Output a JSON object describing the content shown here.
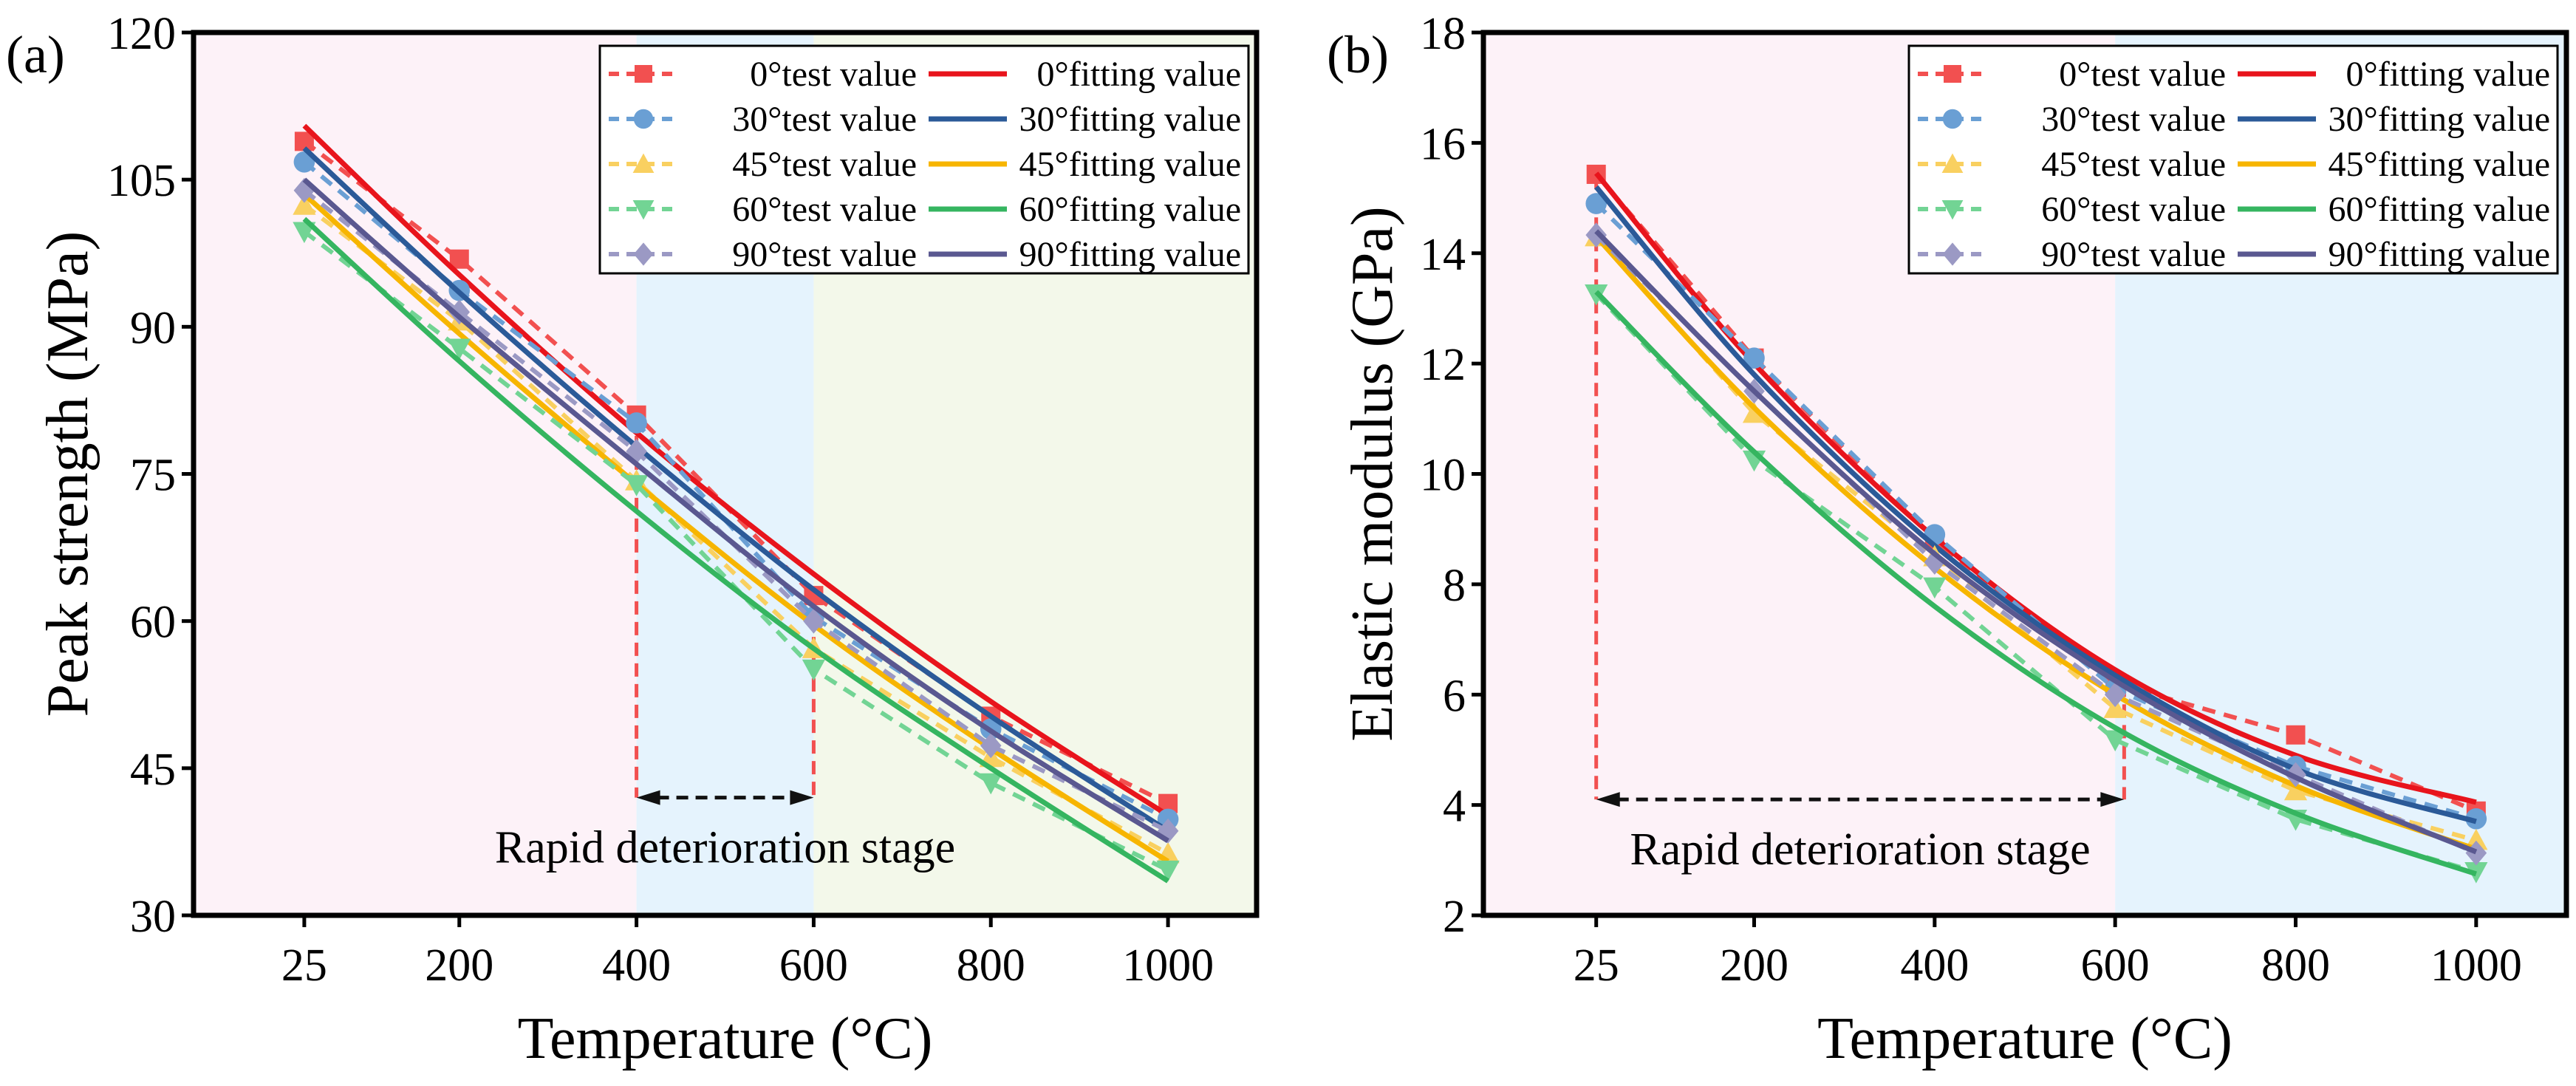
{
  "chart_data": [
    {
      "type": "line",
      "panel_label": "(a)",
      "xlabel": "Temperature (°C)",
      "ylabel": "Peak strength (MPa)",
      "x": [
        25,
        200,
        400,
        600,
        800,
        1000
      ],
      "xticks": [
        "25",
        "200",
        "400",
        "600",
        "800",
        "1000"
      ],
      "xlim": [
        -100,
        1100
      ],
      "ylim": [
        30,
        120
      ],
      "yticks": [
        30,
        45,
        60,
        75,
        90,
        105,
        120
      ],
      "regions": [
        {
          "from": -100,
          "to": 400,
          "color": "#fdf2f8"
        },
        {
          "from": 400,
          "to": 600,
          "color": "#e5f3fd"
        },
        {
          "from": 600,
          "to": 1100,
          "color": "#f3f8ea"
        }
      ],
      "annotation": {
        "text": "Rapid deterioration stage",
        "from": 400,
        "to": 600,
        "y": 42,
        "line_tops": [
          81,
          62.6
        ]
      },
      "legend_position": "top-right",
      "series": [
        {
          "name": "0°test value",
          "kind": "test",
          "marker": "square",
          "color": "#f25050",
          "values": [
            108.9,
            96.9,
            81.0,
            62.6,
            50.3,
            41.4
          ]
        },
        {
          "name": "0°fitting value",
          "kind": "fit",
          "color": "#e8141c",
          "values": [
            110.5,
            95.3,
            79.2,
            64.8,
            51.8,
            40.2
          ]
        },
        {
          "name": "30°test value",
          "kind": "test",
          "marker": "circle",
          "color": "#6a9fd4",
          "values": [
            106.8,
            93.7,
            80.2,
            60.4,
            49.0,
            39.8
          ]
        },
        {
          "name": "30°fitting value",
          "kind": "fit",
          "color": "#2b5a98",
          "values": [
            108.2,
            93.5,
            77.8,
            63.2,
            50.3,
            38.6
          ]
        },
        {
          "name": "45°test value",
          "kind": "test",
          "marker": "triangle-up",
          "color": "#f9d060",
          "values": [
            102.4,
            90.6,
            74.3,
            57.2,
            46.1,
            36.3
          ]
        },
        {
          "name": "45°fitting value",
          "kind": "fit",
          "color": "#f7b500",
          "values": [
            103.5,
            89.3,
            74.0,
            59.6,
            47.0,
            35.5
          ]
        },
        {
          "name": "60°test value",
          "kind": "test",
          "marker": "triangle-down",
          "color": "#72d494",
          "values": [
            99.7,
            87.8,
            73.9,
            55.1,
            43.5,
            34.6
          ]
        },
        {
          "name": "60°fitting value",
          "kind": "fit",
          "color": "#35b560",
          "values": [
            101.0,
            86.5,
            71.2,
            57.2,
            45.0,
            33.5
          ]
        },
        {
          "name": "90°test value",
          "kind": "test",
          "marker": "diamond",
          "color": "#9b99c4",
          "values": [
            103.9,
            91.5,
            77.3,
            60.0,
            47.3,
            38.6
          ]
        },
        {
          "name": "90°fitting value",
          "kind": "fit",
          "color": "#5a5890",
          "values": [
            105.0,
            91.0,
            76.0,
            61.5,
            48.8,
            37.6
          ]
        }
      ]
    },
    {
      "type": "line",
      "panel_label": "(b)",
      "xlabel": "Temperature (°C)",
      "ylabel": "Elastic modulus (GPa)",
      "x": [
        25,
        200,
        400,
        600,
        800,
        1000
      ],
      "xticks": [
        "25",
        "200",
        "400",
        "600",
        "800",
        "1000"
      ],
      "xlim": [
        -100,
        1100
      ],
      "ylim": [
        2,
        18
      ],
      "yticks": [
        2,
        4,
        6,
        8,
        10,
        12,
        14,
        16,
        18
      ],
      "regions": [
        {
          "from": -100,
          "to": 600,
          "color": "#fdf2f8"
        },
        {
          "from": 600,
          "to": 1100,
          "color": "#e5f3fd"
        }
      ],
      "annotation": {
        "text": "Rapid deterioration stage",
        "from": 25,
        "to": 610,
        "y": 4.1,
        "line_tops": [
          15.4,
          6.2
        ]
      },
      "legend_position": "top-right",
      "series": [
        {
          "name": "0°test value",
          "kind": "test",
          "marker": "square",
          "color": "#f25050",
          "values": [
            15.43,
            12.1,
            8.8,
            6.2,
            5.27,
            3.89
          ]
        },
        {
          "name": "0°fitting value",
          "kind": "fit",
          "color": "#e8141c",
          "values": [
            15.45,
            12.0,
            8.85,
            6.45,
            4.9,
            4.05
          ]
        },
        {
          "name": "30°test value",
          "kind": "test",
          "marker": "circle",
          "color": "#6a9fd4",
          "values": [
            14.9,
            12.1,
            8.9,
            6.1,
            4.7,
            3.75
          ]
        },
        {
          "name": "30°fitting value",
          "kind": "fit",
          "color": "#2b5a98",
          "values": [
            15.2,
            11.8,
            8.7,
            6.35,
            4.65,
            3.7
          ]
        },
        {
          "name": "45°test value",
          "kind": "test",
          "marker": "triangle-up",
          "color": "#f9d060",
          "values": [
            14.3,
            11.1,
            8.5,
            5.75,
            4.26,
            3.36
          ]
        },
        {
          "name": "45°fitting value",
          "kind": "fit",
          "color": "#f7b500",
          "values": [
            14.3,
            11.2,
            8.3,
            6.0,
            4.35,
            3.2
          ]
        },
        {
          "name": "60°test value",
          "kind": "test",
          "marker": "triangle-down",
          "color": "#72d494",
          "values": [
            13.26,
            10.25,
            7.95,
            5.18,
            3.74,
            2.79
          ]
        },
        {
          "name": "60°fitting value",
          "kind": "fit",
          "color": "#35b560",
          "values": [
            13.3,
            10.4,
            7.6,
            5.4,
            3.85,
            2.75
          ]
        },
        {
          "name": "90°test value",
          "kind": "test",
          "marker": "diamond",
          "color": "#9b99c4",
          "values": [
            14.33,
            11.5,
            8.4,
            6.0,
            4.55,
            3.13
          ]
        },
        {
          "name": "90°fitting value",
          "kind": "fit",
          "color": "#5a5890",
          "values": [
            14.4,
            11.5,
            8.55,
            6.25,
            4.5,
            3.15
          ]
        }
      ]
    }
  ]
}
